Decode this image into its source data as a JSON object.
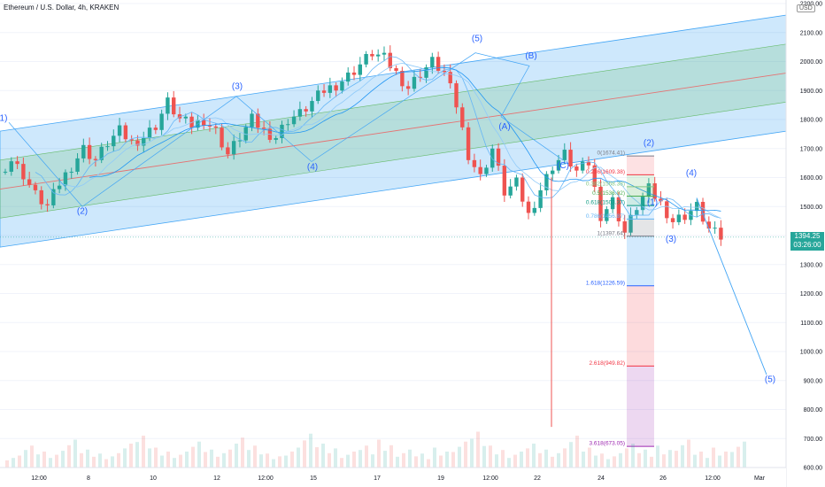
{
  "header": {
    "symbol_line": "Ethereum / U.S. Dollar, 4h, KRAKEN"
  },
  "currency_badge": "USD",
  "price_badge": {
    "price": "1394.25",
    "countdown": "03:26:00"
  },
  "colors": {
    "up": "#26a69a",
    "down": "#ef5350",
    "channel_blue": "rgba(33,150,243,0.22)",
    "channel_green": "rgba(76,175,80,0.18)",
    "median": "#e57373",
    "wave_text": "#2962ff"
  },
  "chart_data": {
    "type": "candlestick",
    "title": "Ethereum / U.S. Dollar, 4h, KRAKEN",
    "ylim": [
      600,
      2200
    ],
    "y_ticks": [
      "2200.00",
      "2100.00",
      "2000.00",
      "1900.00",
      "1800.00",
      "1700.00",
      "1600.00",
      "1500.00",
      "1400.00",
      "1300.00",
      "1200.00",
      "1100.00",
      "1000.00",
      "900.00",
      "800.00",
      "700.00",
      "600.00"
    ],
    "x_ticks": [
      "12:00",
      "8",
      "10",
      "12",
      "12:00",
      "15",
      "17",
      "19",
      "12:00",
      "22",
      "24",
      "26",
      "12:00",
      "Mar"
    ],
    "last_price": 1394.25,
    "price_path": [
      1620,
      1660,
      1610,
      1540,
      1500,
      1580,
      1640,
      1700,
      1660,
      1720,
      1760,
      1720,
      1740,
      1780,
      1860,
      1800,
      1780,
      1800,
      1760,
      1680,
      1740,
      1800,
      1760,
      1740,
      1800,
      1820,
      1860,
      1900,
      1920,
      1950,
      1990,
      2030,
      2010,
      1960,
      1910,
      1960,
      2000,
      1960,
      1850,
      1680,
      1600,
      1700,
      1550,
      1580,
      1470,
      1560,
      1640,
      1680,
      1620,
      1650,
      1470,
      1520,
      1410,
      1500,
      1560,
      1510,
      1450,
      1470,
      1500,
      1420,
      1394
    ],
    "volume_pattern": [
      30,
      55,
      40,
      70,
      45,
      35,
      60,
      80,
      50,
      40,
      65,
      45,
      75,
      55,
      35,
      50,
      85,
      60,
      40,
      55,
      70,
      45,
      35,
      50,
      65,
      90,
      55,
      40,
      60,
      45,
      80,
      50,
      35,
      60,
      45,
      55,
      70,
      40,
      50,
      65
    ],
    "wave_labels": [
      {
        "text": "1)",
        "price": 1795
      },
      {
        "text": "(2)",
        "price": 1475
      },
      {
        "text": "(3)",
        "price": 1905
      },
      {
        "text": "(4)",
        "price": 1628
      },
      {
        "text": "(5)",
        "price": 2070
      },
      {
        "text": "(B)",
        "price": 2010
      },
      {
        "text": "(A)",
        "price": 1766
      },
      {
        "text": "(C)",
        "price": 1632
      },
      {
        "text": "(2)",
        "price": 1710
      },
      {
        "text": "(1)",
        "price": 1506
      },
      {
        "text": "(3)",
        "price": 1378
      },
      {
        "text": "(4)",
        "price": 1606
      },
      {
        "text": "(5)",
        "price": 895
      }
    ],
    "fib_levels": [
      {
        "label": "0(1674.41)",
        "price": 1674.41,
        "color": "#787b86"
      },
      {
        "label": "0.236(1609.38)",
        "price": 1609.38,
        "color": "#f23645"
      },
      {
        "label": "0.382(1568.38)",
        "price": 1568.38,
        "color": "#81c784"
      },
      {
        "label": "0.5(1536.02)",
        "price": 1536.02,
        "color": "#4caf50"
      },
      {
        "label": "0.618(1503.37)",
        "price": 1503.37,
        "color": "#089981"
      },
      {
        "label": "0.786(1456.87)",
        "price": 1456.87,
        "color": "#64b5f6"
      },
      {
        "label": "1(1397.64)",
        "price": 1397.64,
        "color": "#787b86"
      },
      {
        "label": "1.618(1226.59)",
        "price": 1226.59,
        "color": "#2962ff"
      },
      {
        "label": "2.618(949.82)",
        "price": 949.82,
        "color": "#f23645"
      },
      {
        "label": "3.618(673.05)",
        "price": 673.05,
        "color": "#9c27b0"
      }
    ]
  }
}
